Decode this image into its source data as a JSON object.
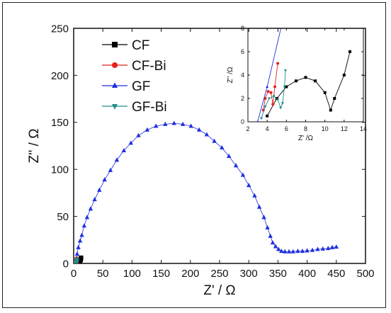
{
  "chart_data": {
    "main": {
      "type": "scatter",
      "xlabel": "Z' / Ω",
      "ylabel": "Z'' / Ω",
      "xlim": [
        0,
        500
      ],
      "ylim": [
        0,
        250
      ],
      "xticks": [
        0,
        50,
        100,
        150,
        200,
        250,
        300,
        350,
        400,
        450,
        500
      ],
      "yticks": [
        0,
        50,
        100,
        150,
        200,
        250
      ],
      "legend_position": "top-left",
      "series": [
        {
          "name": "CF",
          "color": "#000000",
          "marker": "square",
          "points": [
            [
              4,
              0.5
            ],
            [
              5,
              2
            ],
            [
              6,
              3
            ],
            [
              7,
              3.5
            ],
            [
              8,
              3.8
            ],
            [
              9,
              3.5
            ],
            [
              10,
              2.5
            ],
            [
              10.6,
              1
            ],
            [
              11,
              2
            ],
            [
              12,
              4
            ],
            [
              12.6,
              6
            ]
          ]
        },
        {
          "name": "CF-Bi",
          "color": "#e8201c",
          "marker": "circle",
          "points": [
            [
              3.6,
              1
            ],
            [
              3.8,
              2
            ],
            [
              4.1,
              2.6
            ],
            [
              4.4,
              2.5
            ],
            [
              4.6,
              1.5
            ],
            [
              4.8,
              3
            ],
            [
              5.1,
              5
            ]
          ]
        },
        {
          "name": "GF",
          "color": "#1f2fe0",
          "marker": "triangle-up",
          "points": [
            [
              3,
              0
            ],
            [
              4,
              3
            ],
            [
              6,
              10
            ],
            [
              8,
              17
            ],
            [
              11,
              24
            ],
            [
              14,
              30
            ],
            [
              18,
              40
            ],
            [
              23,
              49
            ],
            [
              29,
              58
            ],
            [
              36,
              68
            ],
            [
              44,
              78
            ],
            [
              53,
              89
            ],
            [
              63,
              99
            ],
            [
              74,
              110
            ],
            [
              86,
              120
            ],
            [
              98,
              128
            ],
            [
              111,
              136
            ],
            [
              126,
              142
            ],
            [
              141,
              146
            ],
            [
              157,
              148
            ],
            [
              172,
              149
            ],
            [
              187,
              148
            ],
            [
              201,
              146
            ],
            [
              215,
              142
            ],
            [
              228,
              137
            ],
            [
              241,
              130
            ],
            [
              254,
              123
            ],
            [
              266,
              114
            ],
            [
              278,
              104
            ],
            [
              290,
              94
            ],
            [
              300,
              83
            ],
            [
              310,
              72
            ],
            [
              318,
              60
            ],
            [
              326,
              49
            ],
            [
              332,
              38
            ],
            [
              337,
              29
            ],
            [
              341,
              22
            ],
            [
              346,
              18
            ],
            [
              351,
              15
            ],
            [
              356,
              13
            ],
            [
              362,
              12.5
            ],
            [
              369,
              12.5
            ],
            [
              376,
              12.5
            ],
            [
              384,
              13
            ],
            [
              392,
              13
            ],
            [
              400,
              13.5
            ],
            [
              409,
              14
            ],
            [
              418,
              15
            ],
            [
              427,
              15.5
            ],
            [
              436,
              16
            ],
            [
              443,
              17
            ],
            [
              450,
              17.5
            ]
          ]
        },
        {
          "name": "GF-Bi",
          "color": "#1f8d8a",
          "marker": "triangle-down",
          "points": [
            [
              3.4,
              0.3
            ],
            [
              3.8,
              1.3
            ],
            [
              4.2,
              2
            ],
            [
              4.7,
              2.2
            ],
            [
              5.1,
              1.9
            ],
            [
              5.4,
              1.2
            ],
            [
              5.6,
              1.6
            ],
            [
              5.8,
              3
            ],
            [
              5.9,
              4.4
            ]
          ]
        }
      ]
    },
    "inset": {
      "type": "scatter",
      "xlabel": "Z' /Ω",
      "ylabel": "Z'' /Ω",
      "xlim": [
        2,
        14
      ],
      "ylim": [
        0,
        8
      ],
      "xticks": [
        2,
        4,
        6,
        8,
        10,
        12,
        14
      ],
      "yticks": [
        0,
        2,
        4,
        6,
        8
      ]
    }
  }
}
